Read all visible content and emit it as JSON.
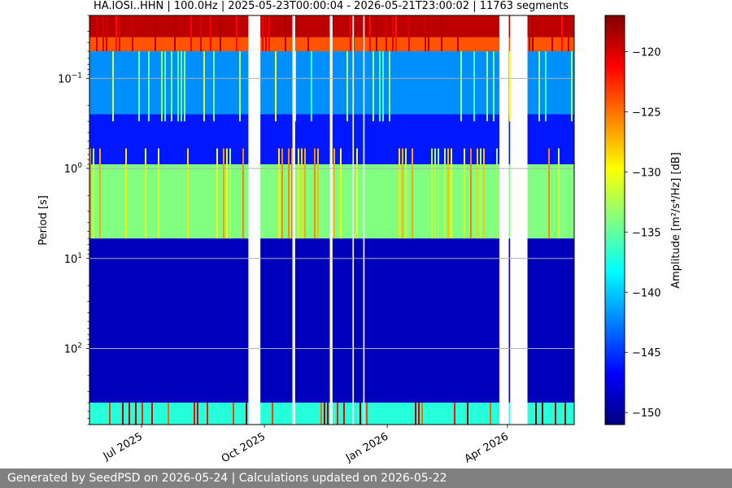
{
  "chart_data": {
    "type": "heatmap",
    "title": "HA.IOSI..HHN | 100.0Hz | 2025-05-23T00:00:04 - 2026-05-21T23:00:02 | 11763 segments",
    "xlabel": "",
    "ylabel": "Period [s]",
    "x_range": [
      "2025-05-23",
      "2026-05-21"
    ],
    "y_scale": "log",
    "y_range": [
      0.02,
      700
    ],
    "y_axis_inverted": true,
    "x_tick_labels": [
      {
        "date": "2025-07-01",
        "label": "Jul 2025"
      },
      {
        "date": "2025-10-01",
        "label": "Oct 2025"
      },
      {
        "date": "2026-01-01",
        "label": "Jan 2026"
      },
      {
        "date": "2026-04-01",
        "label": "Apr 2026"
      }
    ],
    "y_ticks": [
      {
        "value": 0.1,
        "base": "10",
        "exp": "−1"
      },
      {
        "value": 1,
        "base": "10",
        "exp": "0"
      },
      {
        "value": 10,
        "base": "10",
        "exp": "1"
      },
      {
        "value": 100,
        "base": "10",
        "exp": "2"
      }
    ],
    "grid": true,
    "colorbar": {
      "label": "Amplitude [m²/s⁴/Hz] [dB]",
      "colormap": "jet",
      "range": [
        -151,
        -117
      ],
      "ticks": [
        {
          "value": -120,
          "label": "−120"
        },
        {
          "value": -125,
          "label": "−125"
        },
        {
          "value": -130,
          "label": "−130"
        },
        {
          "value": -135,
          "label": "−135"
        },
        {
          "value": -140,
          "label": "−140"
        },
        {
          "value": -145,
          "label": "−145"
        },
        {
          "value": -150,
          "label": "−150"
        }
      ]
    },
    "data_gaps": [
      [
        "2025-09-19",
        "2025-09-28"
      ],
      [
        "2025-10-22",
        "2025-10-24"
      ],
      [
        "2025-11-19",
        "2025-11-21"
      ],
      [
        "2025-12-06",
        "2025-12-07"
      ],
      [
        "2025-12-14",
        "2025-12-15"
      ],
      [
        "2026-03-26",
        "2026-04-02"
      ],
      [
        "2026-04-03",
        "2026-04-16"
      ]
    ],
    "bands": [
      {
        "period_range": [
          0.02,
          0.035
        ],
        "level_db": -119
      },
      {
        "period_range": [
          0.035,
          0.05
        ],
        "level_db": -124
      },
      {
        "period_range": [
          0.05,
          0.25
        ],
        "level_db": -142
      },
      {
        "period_range": [
          0.25,
          0.9
        ],
        "level_db": -146
      },
      {
        "period_range": [
          0.9,
          6
        ],
        "level_db": -134
      },
      {
        "period_range": [
          6,
          400
        ],
        "level_db": -149
      },
      {
        "period_range": [
          400,
          700
        ],
        "level_db": -137
      }
    ]
  },
  "footer": {
    "text": "Generated by SeedPSD on 2026-05-24 | Calculations updated on 2026-05-22"
  }
}
